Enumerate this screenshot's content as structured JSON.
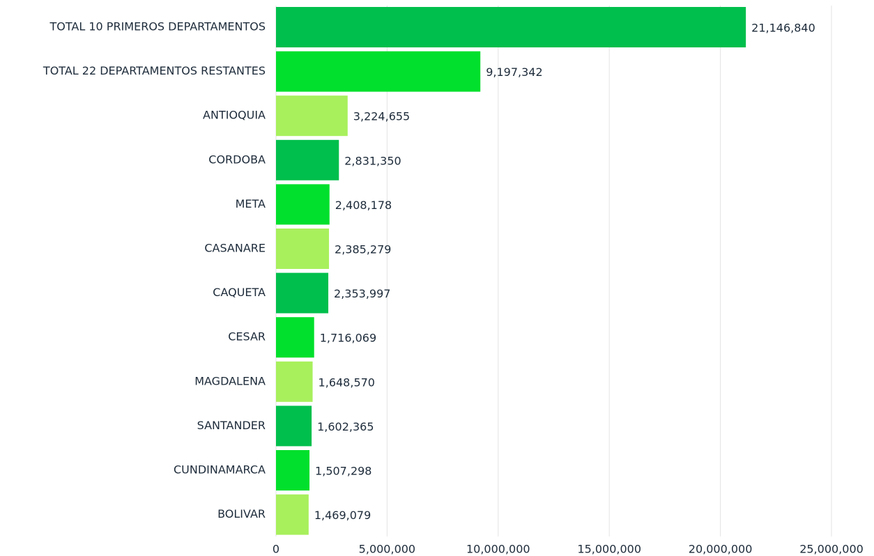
{
  "chart_data": {
    "type": "bar",
    "orientation": "horizontal",
    "categories": [
      "TOTAL 10 PRIMEROS DEPARTAMENTOS",
      "TOTAL 22 DEPARTAMENTOS RESTANTES",
      "ANTIOQUIA",
      "CORDOBA",
      "META",
      "CASANARE",
      "CAQUETA",
      "CESAR",
      "MAGDALENA",
      "SANTANDER",
      "CUNDINAMARCA",
      "BOLIVAR"
    ],
    "values": [
      21146840,
      9197342,
      3224655,
      2831350,
      2408178,
      2385279,
      2353997,
      1716069,
      1648570,
      1602365,
      1507298,
      1469079
    ],
    "value_labels": [
      "21,146,840",
      "9,197,342",
      "3,224,655",
      "2,831,350",
      "2,408,178",
      "2,385,279",
      "2,353,997",
      "1,716,069",
      "1,648,570",
      "1,602,365",
      "1,507,298",
      "1,469,079"
    ],
    "colors": [
      "#00bf4c",
      "#00e02c",
      "#a8f05c",
      "#00bf4c",
      "#00e02c",
      "#a8f05c",
      "#00bf4c",
      "#00e02c",
      "#a8f05c",
      "#00bf4c",
      "#00e02c",
      "#a8f05c"
    ],
    "xlim": [
      0,
      25000000
    ],
    "xticks": [
      0,
      {
        "value": 5000000,
        "label": "5,000,000"
      },
      {
        "value": 10000000,
        "label": "10,000,000"
      },
      {
        "value": 15000000,
        "label": "15,000,000"
      },
      {
        "value": 20000000,
        "label": "20,000,000"
      },
      {
        "value": 25000000,
        "label": "25,000,000"
      }
    ],
    "grid": true
  }
}
